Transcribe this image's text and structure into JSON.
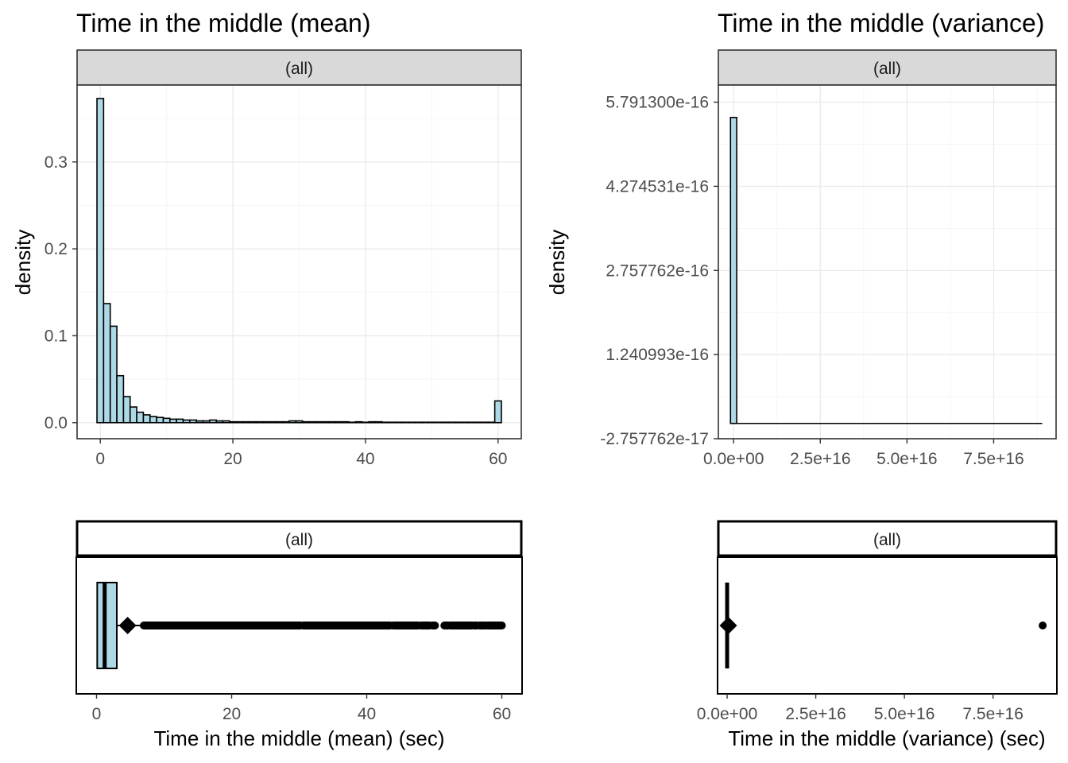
{
  "colors": {
    "fill": "#add8e6",
    "outline": "#000000",
    "strip": "#d9d9d9"
  },
  "chart_data": [
    {
      "type": "bar",
      "subtype": "histogram",
      "title": "Time in the middle (mean)",
      "strip": "(all)",
      "xlabel": "",
      "ylabel": "density",
      "xlim": [
        -3.5,
        63.5
      ],
      "ylim": [
        -0.0185,
        0.3885
      ],
      "x_ticks": [
        0,
        20,
        40,
        60
      ],
      "x_tick_labels": [
        "0",
        "20",
        "40",
        "60"
      ],
      "y_ticks": [
        0.0,
        0.1,
        0.2,
        0.3
      ],
      "y_tick_labels": [
        "0.0",
        "0.1",
        "0.2",
        "0.3"
      ],
      "bin_width": 1,
      "bin_start": -0.5,
      "values": [
        0.373,
        0.137,
        0.111,
        0.054,
        0.03,
        0.018,
        0.012,
        0.009,
        0.007,
        0.006,
        0.005,
        0.004,
        0.004,
        0.003,
        0.003,
        0.002,
        0.002,
        0.003,
        0.002,
        0.002,
        0.001,
        0.001,
        0.001,
        0.001,
        0.001,
        0.001,
        0.001,
        0.001,
        0.001,
        0.002,
        0.002,
        0.001,
        0.001,
        0.001,
        0.001,
        0.001,
        0.001,
        0.001,
        0.0005,
        0.001,
        0.0005,
        0.001,
        0.001,
        0.0005,
        0.0005,
        0.0005,
        0.0005,
        0.0005,
        0.0005,
        0.0005,
        0.0005,
        0.0005,
        0.0005,
        0.0005,
        0.0005,
        0.0005,
        0.0005,
        0.0005,
        0.0005,
        0.0005,
        0.025
      ],
      "grid": true
    },
    {
      "type": "bar",
      "subtype": "histogram",
      "title": "Time in the middle (variance)",
      "strip": "(all)",
      "xlabel": "",
      "ylabel": "density",
      "xlim": [
        -4400000000000000.0,
        9.3e+16
      ],
      "ylim": [
        -2.757762e-17,
        6.1e-16
      ],
      "x_ticks": [
        0,
        2.5e+16,
        5e+16,
        7.5e+16
      ],
      "x_tick_labels": [
        "0.0e+00",
        "2.5e+16",
        "5.0e+16",
        "7.5e+16"
      ],
      "y_ticks": [
        -2.757762e-17,
        1.240993e-16,
        2.757762e-16,
        4.274531e-16,
        5.7913e-16
      ],
      "y_tick_labels": [
        "-2.757762e-17",
        "1.240993e-16",
        "2.757762e-16",
        "4.274531e-16",
        "5.791300e-16"
      ],
      "bin_width": 1800000000000000.0,
      "bin_start": -900000000000000.0,
      "first_bin_value": 5.5155e-16,
      "x_max": 8.9e+16,
      "grid": true
    },
    {
      "type": "boxplot",
      "strip": "(all)",
      "xlabel": "Time in the middle (mean) (sec)",
      "xlim": [
        -3,
        63
      ],
      "x_ticks": [
        0,
        20,
        40,
        60
      ],
      "x_tick_labels": [
        "0",
        "20",
        "40",
        "60"
      ],
      "q1": 0.1,
      "median": 1.2,
      "q3": 3.0,
      "whisker_low": 0.0,
      "whisker_high": 7.0,
      "mean": 4.6,
      "outlier_range": [
        7.0,
        60.0
      ],
      "outlier_gaps": [
        [
          30.2,
          30.6
        ],
        [
          43.5,
          43.9
        ],
        [
          47.6,
          48.0
        ],
        [
          49.3,
          49.7
        ],
        [
          50.1,
          51.5
        ],
        [
          52.0,
          52.3
        ],
        [
          55.6,
          55.9
        ],
        [
          56.3,
          56.7
        ],
        [
          57.5,
          57.8
        ]
      ]
    },
    {
      "type": "boxplot",
      "strip": "(all)",
      "xlabel": "Time in the middle (variance) (sec)",
      "xlim": [
        -2700000000000000.0,
        9.3e+16
      ],
      "x_ticks": [
        0,
        2.5e+16,
        5e+16,
        7.5e+16
      ],
      "x_tick_labels": [
        "0.0e+00",
        "2.5e+16",
        "5.0e+16",
        "7.5e+16"
      ],
      "median": 0,
      "mean": 330000000000000.0,
      "outliers": [
        8.9e+16
      ]
    }
  ]
}
